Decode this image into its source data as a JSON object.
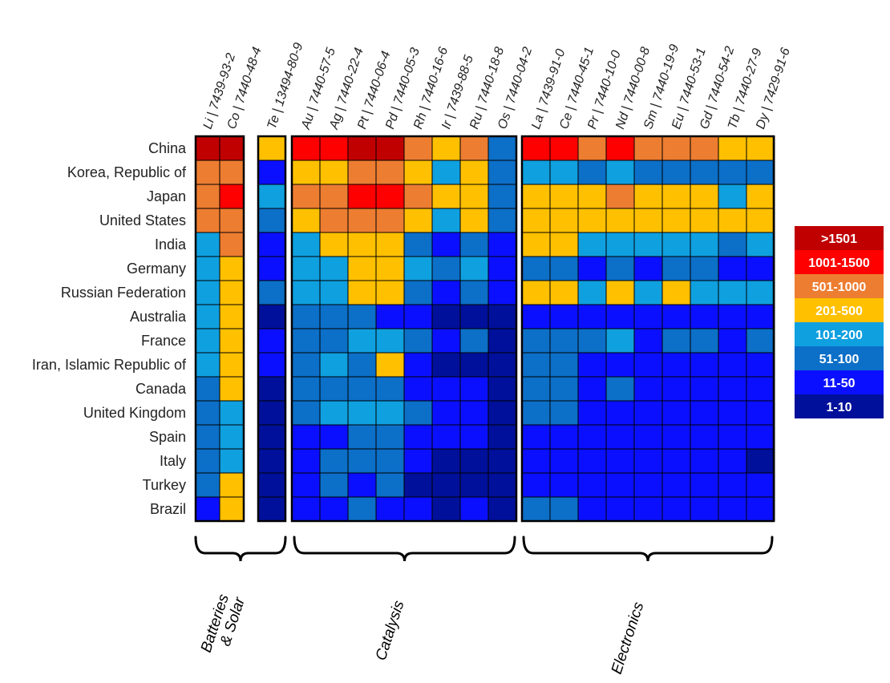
{
  "chart_data": {
    "type": "heatmap",
    "rows": [
      "China",
      "Korea, Republic of",
      "Japan",
      "United States",
      "India",
      "Germany",
      "Russian Federation",
      "Australia",
      "France",
      "Iran, Islamic Republic of",
      "Canada",
      "United Kingdom",
      "Spain",
      "Italy",
      "Turkey",
      "Brazil"
    ],
    "columns": [
      "Li | 7439-93-2",
      "Co | 7440-48-4",
      "Te | 13494-80-9",
      "Au | 7440-57-5",
      "Ag | 7440-22-4",
      "Pt | 7440-06-4",
      "Pd | 7440-05-3",
      "Rh | 7440-16-6",
      "Ir | 7439-88-5",
      "Ru | 7440-18-8",
      "Os | 7440-04-2",
      "La | 7439-91-0",
      "Ce | 7440-45-1",
      "Pr | 7440-10-0",
      "Nd | 7440-00-8",
      "Sm | 7440-19-9",
      "Eu | 7440-53-1",
      "Gd | 7440-54-2",
      "Tb | 7440-27-9",
      "Dy | 7429-91-6"
    ],
    "groups": [
      {
        "label_lines": [
          "Batteries",
          "& Solar"
        ],
        "columns": [
          0,
          1,
          2
        ]
      },
      {
        "label_lines": [
          "Catalysis"
        ],
        "columns": [
          3,
          4,
          5,
          6,
          7,
          8,
          9,
          10
        ]
      },
      {
        "label_lines": [
          "Electronics"
        ],
        "columns": [
          11,
          12,
          13,
          14,
          15,
          16,
          17,
          18,
          19
        ]
      }
    ],
    "blocks": [
      [
        0,
        1
      ],
      [
        2
      ],
      [
        3,
        4,
        5,
        6,
        7,
        8,
        9,
        10
      ],
      [
        11,
        12,
        13,
        14,
        15,
        16,
        17,
        18,
        19
      ]
    ],
    "bins": [
      {
        "label": ">1501",
        "color": "#C00000"
      },
      {
        "label": "1001-1500",
        "color": "#FF0000"
      },
      {
        "label": "501-1000",
        "color": "#ED7D31"
      },
      {
        "label": "201-500",
        "color": "#FFC000"
      },
      {
        "label": "101-200",
        "color": "#0FA0E0"
      },
      {
        "label": "51-100",
        "color": "#0C6FC8"
      },
      {
        "label": "11-50",
        "color": "#0A10FF"
      },
      {
        "label": "1-10",
        "color": "#00109A"
      }
    ],
    "cell_bin_index": [
      [
        0,
        0,
        3,
        1,
        1,
        0,
        0,
        2,
        3,
        2,
        5,
        1,
        1,
        2,
        1,
        2,
        2,
        2,
        3,
        3
      ],
      [
        2,
        2,
        6,
        3,
        3,
        2,
        2,
        3,
        4,
        3,
        5,
        4,
        4,
        5,
        4,
        5,
        5,
        5,
        5,
        5
      ],
      [
        2,
        1,
        4,
        2,
        2,
        1,
        1,
        2,
        3,
        3,
        5,
        3,
        3,
        3,
        2,
        3,
        3,
        3,
        4,
        3
      ],
      [
        2,
        2,
        5,
        3,
        2,
        2,
        2,
        3,
        4,
        3,
        5,
        3,
        3,
        3,
        3,
        3,
        3,
        3,
        3,
        3
      ],
      [
        4,
        2,
        6,
        4,
        3,
        3,
        3,
        5,
        6,
        5,
        6,
        3,
        3,
        4,
        4,
        4,
        4,
        4,
        5,
        4
      ],
      [
        4,
        3,
        6,
        4,
        4,
        3,
        3,
        4,
        5,
        4,
        6,
        5,
        5,
        6,
        5,
        6,
        5,
        5,
        6,
        6
      ],
      [
        4,
        3,
        5,
        4,
        4,
        3,
        3,
        5,
        6,
        5,
        6,
        3,
        3,
        4,
        3,
        4,
        3,
        4,
        4,
        4
      ],
      [
        4,
        3,
        7,
        5,
        5,
        5,
        6,
        6,
        7,
        7,
        7,
        6,
        6,
        6,
        6,
        6,
        6,
        6,
        6,
        6
      ],
      [
        4,
        3,
        6,
        5,
        5,
        4,
        4,
        5,
        6,
        5,
        7,
        5,
        5,
        5,
        4,
        6,
        5,
        5,
        6,
        5
      ],
      [
        4,
        3,
        6,
        5,
        4,
        5,
        3,
        6,
        7,
        7,
        7,
        5,
        5,
        6,
        6,
        6,
        6,
        6,
        6,
        6
      ],
      [
        5,
        3,
        7,
        5,
        5,
        5,
        5,
        6,
        6,
        6,
        7,
        5,
        5,
        6,
        5,
        6,
        6,
        6,
        6,
        6
      ],
      [
        5,
        4,
        7,
        5,
        4,
        4,
        4,
        5,
        6,
        6,
        7,
        5,
        5,
        6,
        6,
        6,
        6,
        6,
        6,
        6
      ],
      [
        5,
        4,
        7,
        6,
        6,
        5,
        5,
        6,
        6,
        6,
        7,
        6,
        6,
        6,
        6,
        6,
        6,
        6,
        6,
        6
      ],
      [
        5,
        4,
        7,
        6,
        5,
        5,
        5,
        6,
        7,
        7,
        7,
        6,
        6,
        6,
        6,
        6,
        6,
        6,
        6,
        7
      ],
      [
        5,
        3,
        7,
        6,
        5,
        6,
        5,
        7,
        7,
        7,
        7,
        6,
        6,
        6,
        6,
        6,
        6,
        6,
        6,
        6
      ],
      [
        6,
        3,
        7,
        6,
        6,
        5,
        6,
        6,
        7,
        6,
        7,
        5,
        5,
        6,
        6,
        6,
        6,
        6,
        6,
        6
      ]
    ]
  }
}
